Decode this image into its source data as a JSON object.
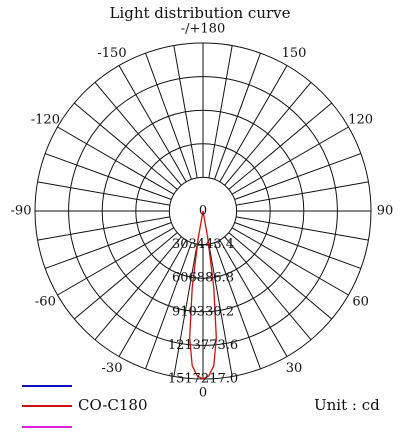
{
  "chart_data": {
    "type": "polar",
    "title": "Light distribution curve",
    "unit": "Unit : cd",
    "theta": [
      -12,
      -10,
      -8,
      -6,
      -4,
      -2,
      0,
      2,
      4,
      6,
      8,
      10,
      12
    ],
    "series": [
      {
        "name": "CO-C180",
        "color": "#d01010",
        "values": [
          0,
          250000,
          700000,
          1150000,
          1400000,
          1490000,
          1517217,
          1490000,
          1400000,
          1150000,
          700000,
          250000,
          0
        ]
      }
    ],
    "rlim": [
      0,
      1517217
    ],
    "rticks": [
      0,
      303443.4,
      606886.8,
      910330.2,
      1213773.6,
      {
        "value": 1517217,
        "label": "1517217.0"
      }
    ],
    "thetaticks": [
      {
        "value": 180,
        "label": "-/+180"
      },
      150,
      -150,
      120,
      -120,
      90,
      -90,
      60,
      -60,
      30,
      -30,
      0
    ],
    "theta_grid": [
      -170,
      -160,
      -150,
      -140,
      -130,
      -120,
      -110,
      -100,
      -90,
      -80,
      -70,
      -60,
      -50,
      -40,
      -30,
      -20,
      -10,
      0,
      10,
      20,
      30,
      40,
      50,
      60,
      70,
      80,
      90,
      100,
      110,
      120,
      130,
      140,
      150,
      160,
      170,
      180
    ]
  }
}
